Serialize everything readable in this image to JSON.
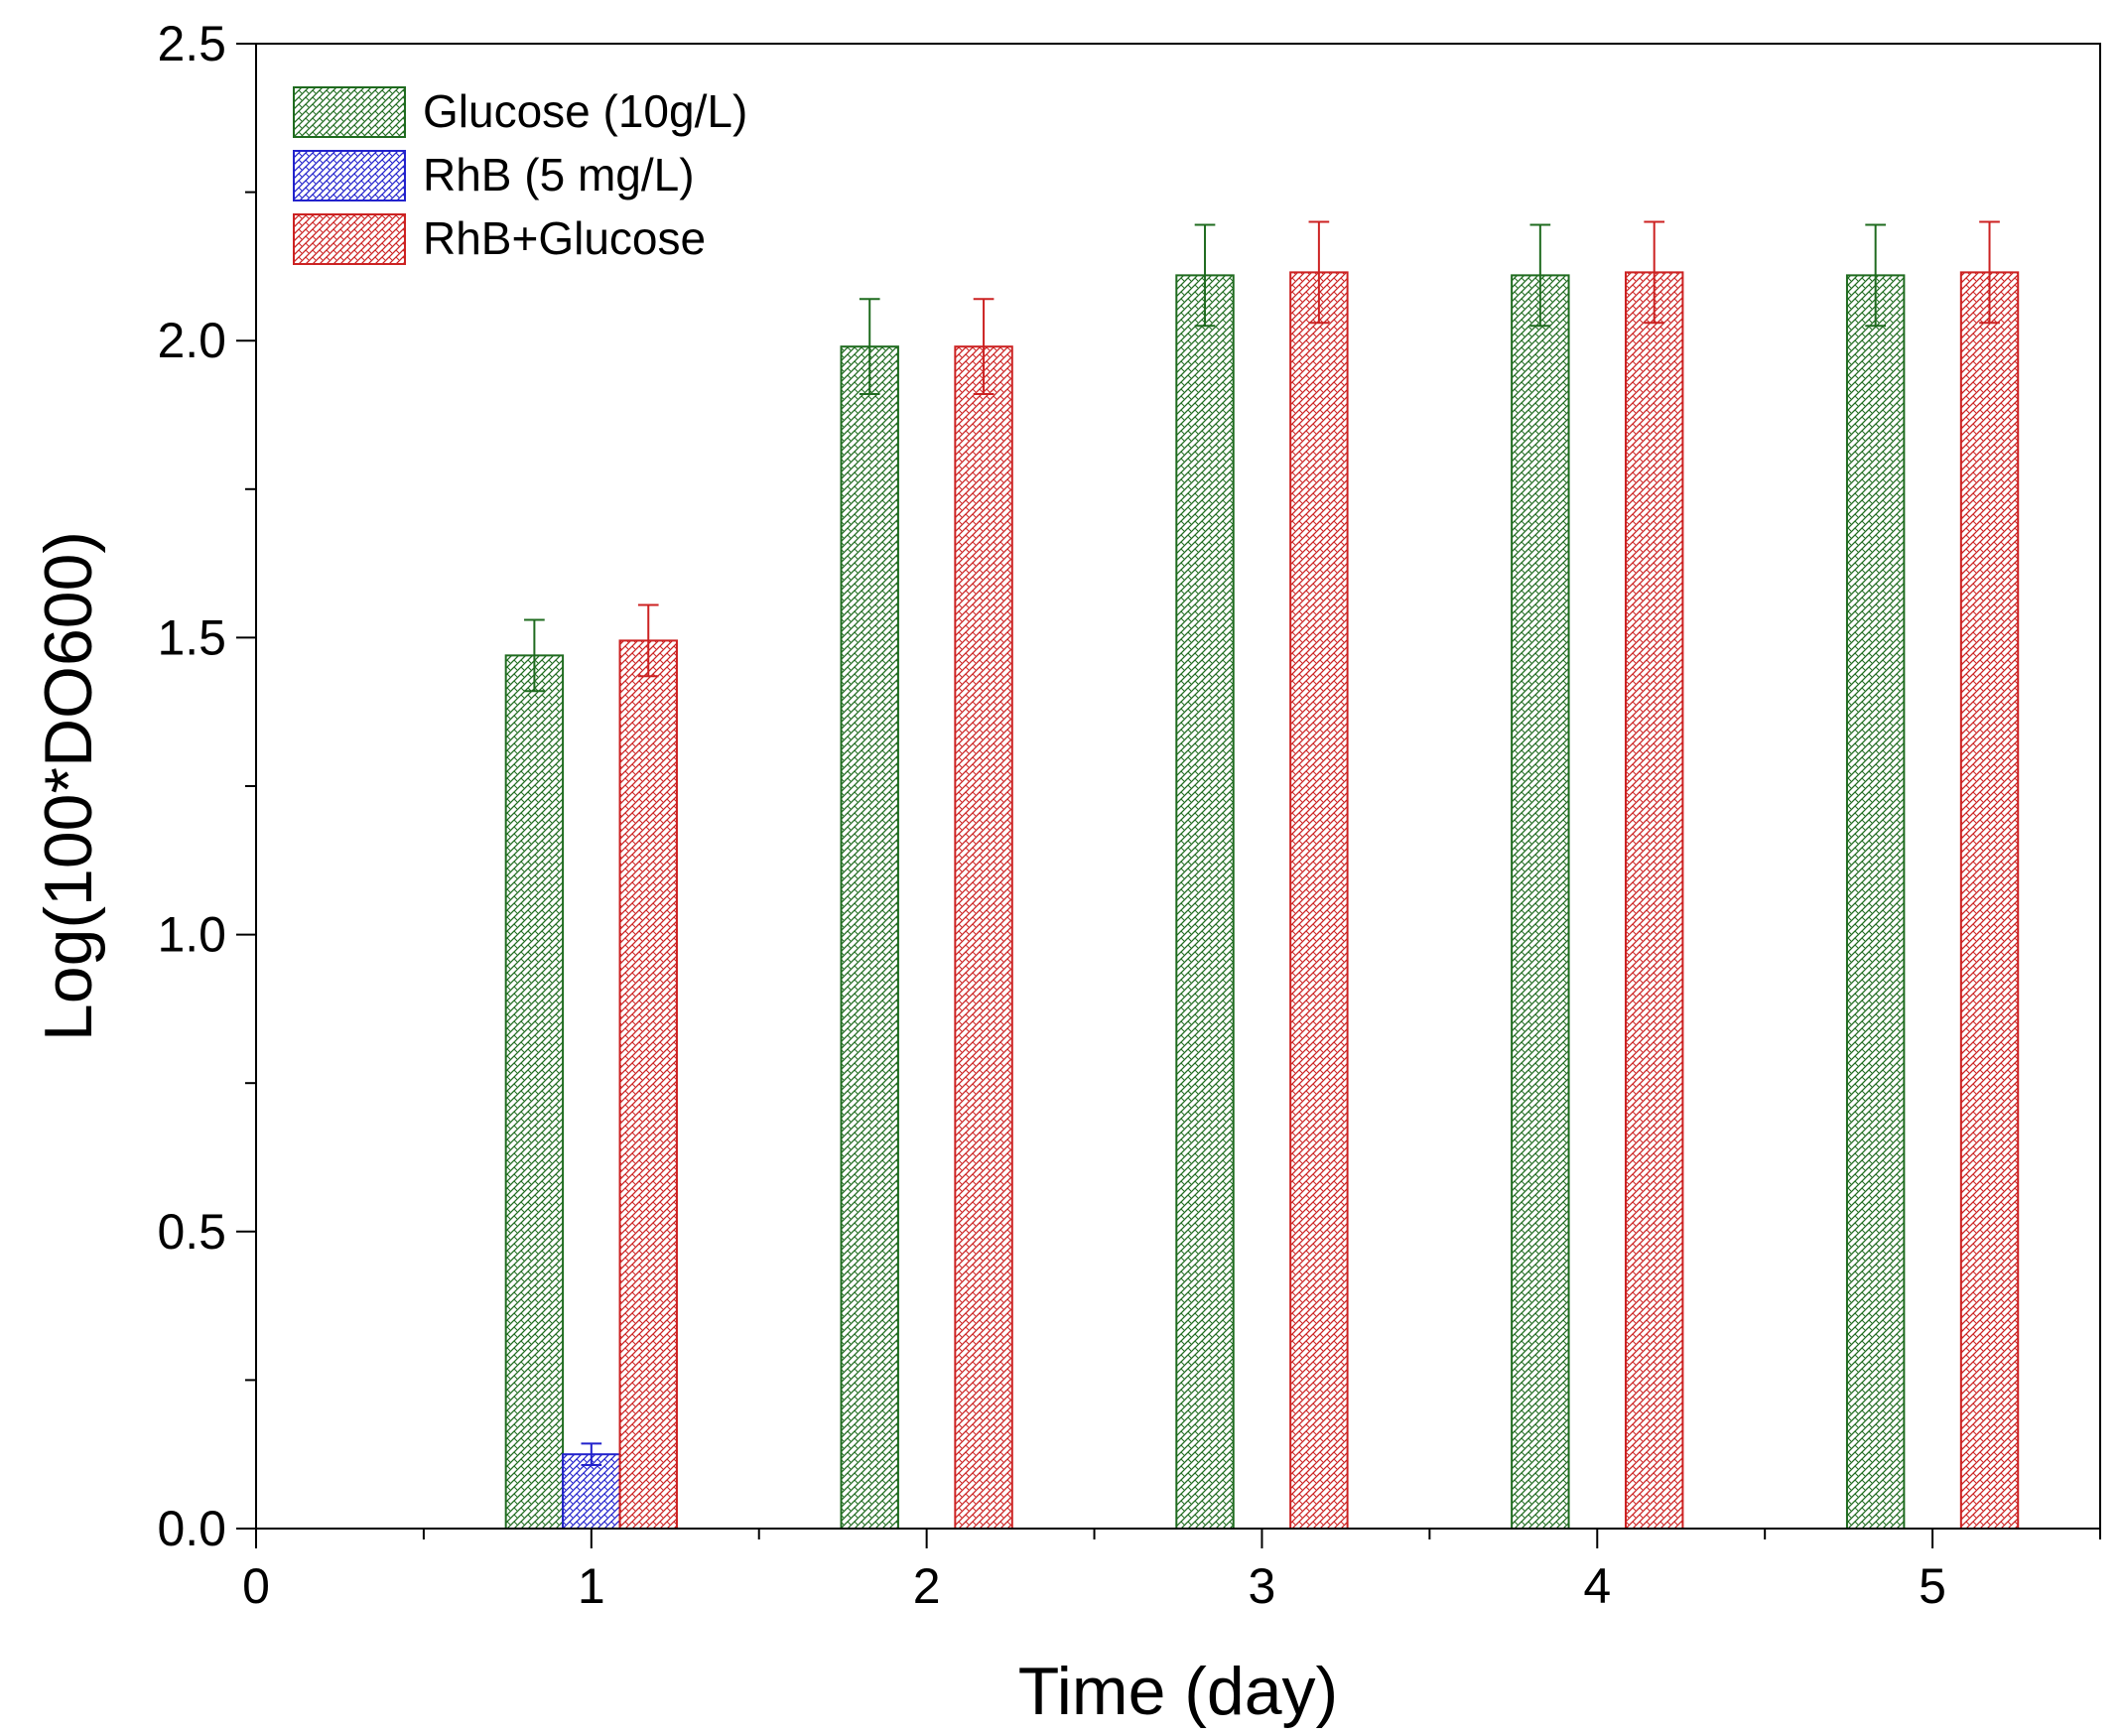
{
  "chart_data": {
    "type": "bar",
    "title": "",
    "xlabel": "Time (day)",
    "ylabel": "Log(100*DO600)",
    "xlim": [
      0,
      5.5
    ],
    "ylim": [
      0,
      2.5
    ],
    "xticks": [
      0,
      1,
      2,
      3,
      4,
      5
    ],
    "yticks": [
      0.0,
      0.5,
      1.0,
      1.5,
      2.0,
      2.5
    ],
    "xtick_labels": [
      "0",
      "1",
      "2",
      "3",
      "4",
      "5"
    ],
    "ytick_labels": [
      "0.0",
      "0.5",
      "1.0",
      "1.5",
      "2.0",
      "2.5"
    ],
    "categories": [
      1,
      2,
      3,
      4,
      5
    ],
    "legend_position": "top-left",
    "grid": false,
    "series": [
      {
        "name": "Glucose (10g/L)",
        "color": "#1f6b1f",
        "values": [
          1.47,
          1.99,
          2.11,
          2.11,
          2.11
        ],
        "errors": [
          0.06,
          0.08,
          0.085,
          0.085,
          0.085
        ]
      },
      {
        "name": "RhB (5 mg/L)",
        "color": "#2222cc",
        "values": [
          0.125,
          null,
          null,
          null,
          null
        ],
        "errors": [
          0.018,
          null,
          null,
          null,
          null
        ]
      },
      {
        "name": "RhB+Glucose",
        "color": "#cc2222",
        "values": [
          1.495,
          1.99,
          2.115,
          2.115,
          2.115
        ],
        "errors": [
          0.06,
          0.08,
          0.085,
          0.085,
          0.085
        ]
      }
    ]
  }
}
